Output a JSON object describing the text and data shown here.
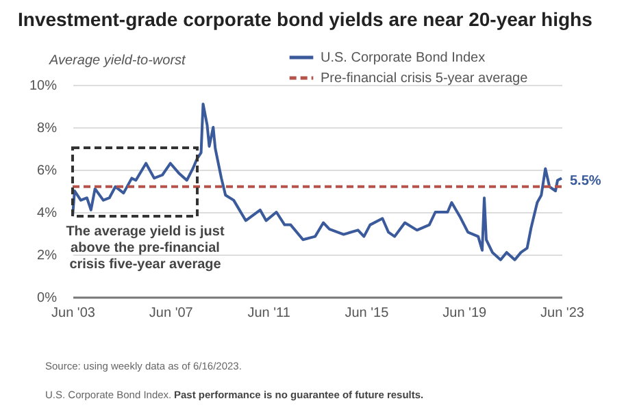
{
  "chart_data": {
    "type": "line",
    "title": "Investment-grade corporate bond yields are near 20-year highs",
    "ylabel": "Average yield-to-worst",
    "x": [
      "2003-06",
      "2003-07",
      "2003-10",
      "2004-01",
      "2004-03",
      "2004-05",
      "2004-09",
      "2004-12",
      "2005-03",
      "2005-07",
      "2005-11",
      "2006-01",
      "2006-06",
      "2006-10",
      "2007-02",
      "2007-06",
      "2007-10",
      "2008-02",
      "2008-05",
      "2008-07",
      "2008-09",
      "2008-10",
      "2008-12",
      "2009-01",
      "2009-03",
      "2009-04",
      "2009-07",
      "2009-09",
      "2010-01",
      "2010-07",
      "2011-02",
      "2011-05",
      "2011-10",
      "2012-02",
      "2012-05",
      "2012-11",
      "2013-05",
      "2013-09",
      "2013-12",
      "2014-07",
      "2015-02",
      "2015-05",
      "2015-08",
      "2016-02",
      "2016-05",
      "2016-08",
      "2017-01",
      "2017-07",
      "2018-01",
      "2018-04",
      "2018-10",
      "2018-12",
      "2019-04",
      "2019-08",
      "2020-01",
      "2020-03",
      "2020-04",
      "2020-05",
      "2020-08",
      "2020-12",
      "2021-03",
      "2021-07",
      "2021-10",
      "2022-01",
      "2022-03",
      "2022-06",
      "2022-08",
      "2022-10",
      "2022-12",
      "2023-03",
      "2023-04",
      "2023-06"
    ],
    "series": [
      {
        "name": "U.S. Corporate Bond Index",
        "color": "#3a5a9b",
        "values": [
          3.8,
          5.0,
          4.56,
          4.67,
          4.1,
          5.1,
          4.56,
          4.67,
          5.2,
          4.9,
          5.6,
          5.5,
          6.3,
          5.6,
          5.75,
          6.3,
          5.85,
          5.5,
          6.05,
          6.5,
          6.8,
          9.1,
          8.1,
          7.1,
          8.0,
          7.0,
          5.6,
          4.8,
          4.56,
          3.6,
          4.1,
          3.6,
          4.0,
          3.4,
          3.4,
          2.7,
          2.85,
          3.5,
          3.2,
          2.95,
          3.15,
          2.85,
          3.4,
          3.7,
          3.05,
          2.85,
          3.5,
          3.15,
          3.4,
          4.0,
          4.0,
          4.45,
          3.8,
          3.05,
          2.85,
          2.2,
          4.67,
          2.7,
          2.1,
          1.75,
          2.1,
          1.75,
          2.1,
          2.3,
          3.25,
          4.45,
          4.8,
          6.05,
          5.2,
          5.0,
          5.5,
          5.6
        ]
      }
    ],
    "ref_lines": [
      {
        "axis": "y",
        "value": 5.2,
        "label": "Pre-financial crisis 5-year average",
        "color": "#b5534b",
        "line_style": "dashed"
      }
    ],
    "xlim": [
      "2003-06",
      "2023-06"
    ],
    "xticks": [
      {
        "value": "2003-06",
        "label": "Jun '03"
      },
      {
        "value": "2007-06",
        "label": "Jun '07"
      },
      {
        "value": "2011-06",
        "label": "Jun '11"
      },
      {
        "value": "2015-06",
        "label": "Jun '15"
      },
      {
        "value": "2019-06",
        "label": "Jun '19"
      },
      {
        "value": "2023-06",
        "label": "Jun '23"
      }
    ],
    "ylim": [
      0,
      10
    ],
    "yticks": [
      {
        "value": 0,
        "label": "0%"
      },
      {
        "value": 2,
        "label": "2%"
      },
      {
        "value": 4,
        "label": "4%"
      },
      {
        "value": 6,
        "label": "6%"
      },
      {
        "value": 8,
        "label": "8%"
      },
      {
        "value": 10,
        "label": "10%"
      }
    ],
    "annotations": [
      "The average yield is just above the pre-financial crisis five-year average",
      {
        "text": "5.5%",
        "x": "2023-06",
        "y": 5.5
      },
      "Source: using weekly data as of 6/16/2023.",
      "U.S. Corporate Bond Index.",
      "Past performance is no guarantee of future results."
    ],
    "grid": "y",
    "legend": "top right",
    "marker": "none",
    "line_style": "solid"
  }
}
